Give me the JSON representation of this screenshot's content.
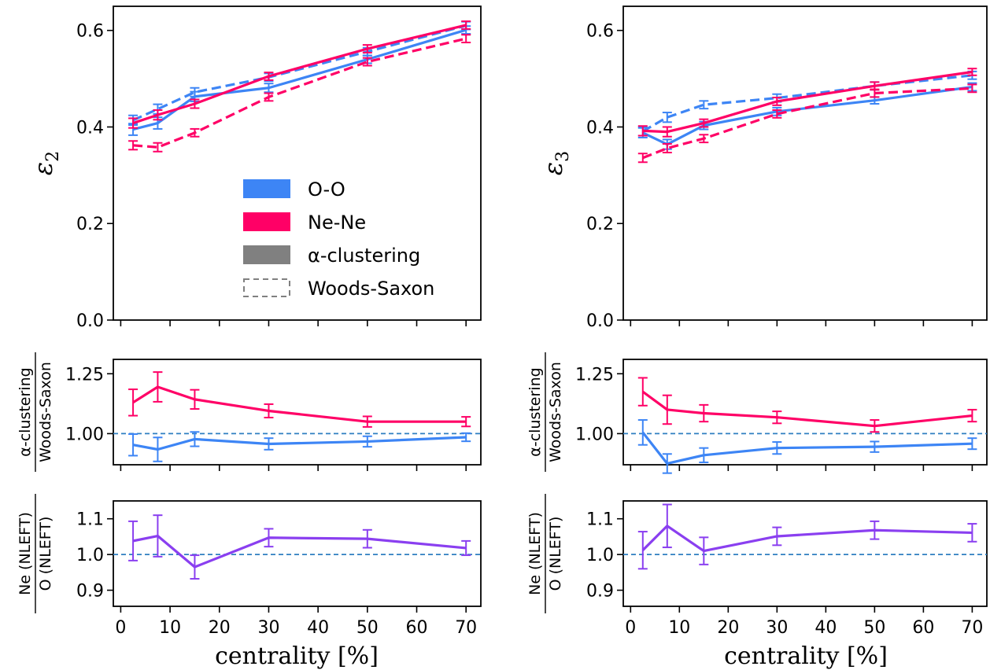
{
  "chart_data": {
    "type": "line",
    "x_axis": {
      "label": "centrality [%]",
      "ticks": [
        "0",
        "10",
        "20",
        "30",
        "40",
        "50",
        "60",
        "70"
      ],
      "range": [
        -1.5,
        73
      ]
    },
    "colors": {
      "O-O": "#3d85f5",
      "Ne-Ne": "#ff0066",
      "ratio": "#8a3ff0",
      "reference": "#2f7fc1"
    },
    "legend": {
      "position": "center",
      "entries": [
        "O-O",
        "Ne-Ne",
        "α-clustering",
        "Woods-Saxon"
      ]
    },
    "x": [
      2.5,
      7.5,
      15,
      30,
      50,
      70
    ],
    "panels": [
      {
        "id": "eps2",
        "ylabel": "ε2",
        "ylim": [
          0.0,
          0.65
        ],
        "yticks": [
          "0.0",
          "0.2",
          "0.4",
          "0.6"
        ],
        "yticks_values": [
          0.0,
          0.2,
          0.4,
          0.6
        ],
        "series": [
          {
            "name": "O-O",
            "model": "α-clustering",
            "values": [
              0.395,
              0.408,
              0.463,
              0.481,
              0.54,
              0.601
            ],
            "err": [
              0.012,
              0.012,
              0.01,
              0.009,
              0.008,
              0.008
            ]
          },
          {
            "name": "O-O",
            "model": "Woods-Saxon",
            "values": [
              0.414,
              0.437,
              0.472,
              0.503,
              0.556,
              0.61
            ],
            "err": [
              0.01,
              0.01,
              0.009,
              0.008,
              0.008,
              0.008
            ]
          },
          {
            "name": "Ne-Ne",
            "model": "α-clustering",
            "values": [
              0.408,
              0.425,
              0.448,
              0.505,
              0.562,
              0.611
            ],
            "err": [
              0.01,
              0.01,
              0.009,
              0.008,
              0.008,
              0.008
            ]
          },
          {
            "name": "Ne-Ne",
            "model": "Woods-Saxon",
            "values": [
              0.362,
              0.358,
              0.388,
              0.462,
              0.535,
              0.583
            ],
            "err": [
              0.009,
              0.009,
              0.008,
              0.008,
              0.008,
              0.008
            ]
          }
        ]
      },
      {
        "id": "eps3",
        "ylabel": "ε3",
        "ylim": [
          0.0,
          0.65
        ],
        "yticks": [
          "0.0",
          "0.2",
          "0.4",
          "0.6"
        ],
        "yticks_values": [
          0.0,
          0.2,
          0.4,
          0.6
        ],
        "series": [
          {
            "name": "O-O",
            "model": "α-clustering",
            "values": [
              0.388,
              0.364,
              0.403,
              0.432,
              0.455,
              0.483
            ],
            "err": [
              0.01,
              0.01,
              0.008,
              0.008,
              0.007,
              0.008
            ]
          },
          {
            "name": "O-O",
            "model": "Woods-Saxon",
            "values": [
              0.391,
              0.42,
              0.446,
              0.46,
              0.485,
              0.507
            ],
            "err": [
              0.009,
              0.01,
              0.008,
              0.008,
              0.008,
              0.008
            ]
          },
          {
            "name": "Ne-Ne",
            "model": "α-clustering",
            "values": [
              0.392,
              0.39,
              0.408,
              0.453,
              0.485,
              0.514
            ],
            "err": [
              0.01,
              0.01,
              0.008,
              0.008,
              0.008,
              0.007
            ]
          },
          {
            "name": "Ne-Ne",
            "model": "Woods-Saxon",
            "values": [
              0.336,
              0.356,
              0.376,
              0.427,
              0.47,
              0.48
            ],
            "err": [
              0.009,
              0.009,
              0.008,
              0.008,
              0.008,
              0.008
            ]
          }
        ]
      },
      {
        "id": "ratio_alpha_left",
        "ylabel_num": "α-clustering",
        "ylabel_den": "Woods-Saxon",
        "ylim": [
          0.87,
          1.31
        ],
        "yticks": [
          "1.00",
          "1.25"
        ],
        "yticks_values": [
          1.0,
          1.25
        ],
        "reference_line": 1.0,
        "series": [
          {
            "name": "Ne-Ne",
            "values": [
              1.13,
              1.195,
              1.143,
              1.095,
              1.05,
              1.05
            ],
            "err": [
              0.055,
              0.062,
              0.04,
              0.028,
              0.022,
              0.02
            ]
          },
          {
            "name": "O-O",
            "values": [
              0.953,
              0.934,
              0.977,
              0.957,
              0.967,
              0.985
            ],
            "err": [
              0.045,
              0.05,
              0.03,
              0.024,
              0.022,
              0.017
            ]
          }
        ]
      },
      {
        "id": "ratio_alpha_right",
        "ylabel_num": "α-clustering",
        "ylabel_den": "Woods-Saxon",
        "ylim": [
          0.87,
          1.31
        ],
        "yticks": [
          "1.00",
          "1.25"
        ],
        "yticks_values": [
          1.0,
          1.25
        ],
        "reference_line": 1.0,
        "series": [
          {
            "name": "Ne-Ne",
            "values": [
              1.175,
              1.1,
              1.085,
              1.068,
              1.032,
              1.075
            ],
            "err": [
              0.058,
              0.06,
              0.035,
              0.025,
              0.025,
              0.025
            ]
          },
          {
            "name": "O-O",
            "values": [
              1.005,
              0.875,
              0.91,
              0.94,
              0.945,
              0.958
            ],
            "err": [
              0.052,
              0.04,
              0.03,
              0.025,
              0.022,
              0.023
            ]
          }
        ]
      },
      {
        "id": "ratio_ne_o_left",
        "ylabel_num": "Ne (NLEFT)",
        "ylabel_den": "O (NLEFT)",
        "ylim": [
          0.855,
          1.15
        ],
        "yticks": [
          "0.9",
          "1.0",
          "1.1"
        ],
        "yticks_values": [
          0.9,
          1.0,
          1.1
        ],
        "reference_line": 1.0,
        "series": [
          {
            "name": "ratio",
            "values": [
              1.038,
              1.052,
              0.965,
              1.047,
              1.044,
              1.018
            ],
            "err": [
              0.055,
              0.058,
              0.033,
              0.025,
              0.025,
              0.02
            ]
          }
        ]
      },
      {
        "id": "ratio_ne_o_right",
        "ylabel_num": "Ne (NLEFT)",
        "ylabel_den": "O (NLEFT)",
        "ylim": [
          0.855,
          1.15
        ],
        "yticks": [
          "0.9",
          "1.0",
          "1.1"
        ],
        "yticks_values": [
          0.9,
          1.0,
          1.1
        ],
        "reference_line": 1.0,
        "series": [
          {
            "name": "ratio",
            "values": [
              1.012,
              1.08,
              1.01,
              1.051,
              1.068,
              1.061
            ],
            "err": [
              0.052,
              0.06,
              0.038,
              0.025,
              0.025,
              0.025
            ]
          }
        ]
      }
    ]
  }
}
